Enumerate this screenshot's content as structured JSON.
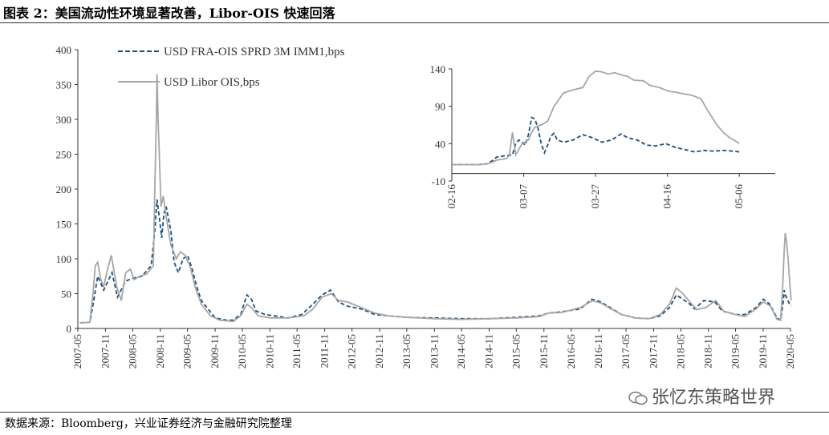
{
  "title": "图表 2：美国流动性环境显著改善，Libor-OIS 快速回落",
  "source": "数据来源：Bloomberg，兴业证券经济与金融研究院整理",
  "watermark": "张忆东策略世界",
  "colors": {
    "fra_ois": "#1f4e79",
    "libor_ois": "#a6a6a6"
  },
  "chart_data": [
    {
      "type": "line",
      "title": "",
      "xlabel": "",
      "ylabel": "",
      "ylim": [
        0,
        400
      ],
      "yticks": [
        0,
        50,
        100,
        150,
        200,
        250,
        300,
        350,
        400
      ],
      "xticks": [
        "2007-05",
        "2007-11",
        "2008-05",
        "2008-11",
        "2009-05",
        "2009-11",
        "2010-05",
        "2010-11",
        "2011-05",
        "2011-11",
        "2012-05",
        "2012-11",
        "2013-05",
        "2013-11",
        "2014-05",
        "2014-11",
        "2015-05",
        "2015-11",
        "2016-05",
        "2016-11",
        "2017-05",
        "2017-11",
        "2018-05",
        "2018-11",
        "2019-05",
        "2019-11",
        "2020-05"
      ],
      "legend": "top-left",
      "series": [
        {
          "name": "USD FRA-OIS SPRD 3M IMM1,bps",
          "style": "dashed",
          "points": [
            [
              "2007-05-15",
              8
            ],
            [
              "2007-07-20",
              9
            ],
            [
              "2007-08-15",
              40
            ],
            [
              "2007-09-10",
              75
            ],
            [
              "2007-10-20",
              55
            ],
            [
              "2007-12-15",
              80
            ],
            [
              "2008-01-20",
              45
            ],
            [
              "2008-03-15",
              68
            ],
            [
              "2008-05-01",
              72
            ],
            [
              "2008-07-01",
              75
            ],
            [
              "2008-09-01",
              90
            ],
            [
              "2008-09-25",
              140
            ],
            [
              "2008-10-10",
              185
            ],
            [
              "2008-10-25",
              160
            ],
            [
              "2008-11-10",
              130
            ],
            [
              "2008-11-25",
              165
            ],
            [
              "2008-12-10",
              175
            ],
            [
              "2009-01-10",
              140
            ],
            [
              "2009-02-01",
              95
            ],
            [
              "2009-03-01",
              80
            ],
            [
              "2009-04-01",
              100
            ],
            [
              "2009-05-01",
              105
            ],
            [
              "2009-06-01",
              85
            ],
            [
              "2009-07-01",
              60
            ],
            [
              "2009-08-01",
              40
            ],
            [
              "2009-09-15",
              28
            ],
            [
              "2009-11-01",
              15
            ],
            [
              "2010-01-15",
              12
            ],
            [
              "2010-03-01",
              12
            ],
            [
              "2010-04-20",
              20
            ],
            [
              "2010-06-01",
              48
            ],
            [
              "2010-07-01",
              42
            ],
            [
              "2010-08-01",
              25
            ],
            [
              "2010-10-01",
              20
            ],
            [
              "2010-12-01",
              18
            ],
            [
              "2011-03-01",
              15
            ],
            [
              "2011-06-01",
              20
            ],
            [
              "2011-08-15",
              35
            ],
            [
              "2011-10-15",
              48
            ],
            [
              "2011-12-10",
              55
            ],
            [
              "2012-02-01",
              38
            ],
            [
              "2012-04-01",
              32
            ],
            [
              "2012-07-01",
              28
            ],
            [
              "2012-10-01",
              20
            ],
            [
              "2013-01-01",
              18
            ],
            [
              "2013-05-01",
              16
            ],
            [
              "2013-11-01",
              15
            ],
            [
              "2014-05-01",
              14
            ],
            [
              "2014-11-01",
              14
            ],
            [
              "2015-05-01",
              16
            ],
            [
              "2015-10-01",
              18
            ],
            [
              "2015-12-01",
              22
            ],
            [
              "2016-03-01",
              24
            ],
            [
              "2016-07-01",
              28
            ],
            [
              "2016-09-15",
              42
            ],
            [
              "2016-11-15",
              38
            ],
            [
              "2017-01-15",
              30
            ],
            [
              "2017-04-01",
              20
            ],
            [
              "2017-07-01",
              15
            ],
            [
              "2017-10-01",
              14
            ],
            [
              "2017-12-15",
              18
            ],
            [
              "2018-02-15",
              30
            ],
            [
              "2018-04-01",
              48
            ],
            [
              "2018-05-15",
              42
            ],
            [
              "2018-07-01",
              35
            ],
            [
              "2018-08-01",
              28
            ],
            [
              "2018-10-01",
              40
            ],
            [
              "2018-12-15",
              38
            ],
            [
              "2019-02-01",
              25
            ],
            [
              "2019-05-01",
              20
            ],
            [
              "2019-07-01",
              20
            ],
            [
              "2019-09-15",
              30
            ],
            [
              "2019-11-01",
              42
            ],
            [
              "2019-12-15",
              35
            ],
            [
              "2020-02-01",
              15
            ],
            [
              "2020-02-25",
              12
            ],
            [
              "2020-03-15",
              40
            ],
            [
              "2020-03-20",
              55
            ],
            [
              "2020-03-27",
              48
            ],
            [
              "2020-04-10",
              42
            ],
            [
              "2020-04-25",
              35
            ],
            [
              "2020-05-06",
              32
            ]
          ]
        },
        {
          "name": "USD Libor OIS,bps",
          "style": "solid",
          "points": [
            [
              "2007-05-15",
              8
            ],
            [
              "2007-07-20",
              9
            ],
            [
              "2007-08-10",
              50
            ],
            [
              "2007-08-25",
              90
            ],
            [
              "2007-09-10",
              95
            ],
            [
              "2007-10-01",
              70
            ],
            [
              "2007-10-20",
              60
            ],
            [
              "2007-11-15",
              85
            ],
            [
              "2007-12-10",
              105
            ],
            [
              "2008-01-15",
              60
            ],
            [
              "2008-02-15",
              40
            ],
            [
              "2008-03-15",
              80
            ],
            [
              "2008-04-15",
              85
            ],
            [
              "2008-05-10",
              70
            ],
            [
              "2008-06-15",
              75
            ],
            [
              "2008-08-01",
              78
            ],
            [
              "2008-09-15",
              90
            ],
            [
              "2008-09-25",
              200
            ],
            [
              "2008-10-05",
              300
            ],
            [
              "2008-10-10",
              365
            ],
            [
              "2008-10-17",
              300
            ],
            [
              "2008-10-25",
              250
            ],
            [
              "2008-11-05",
              175
            ],
            [
              "2008-11-20",
              190
            ],
            [
              "2008-12-10",
              160
            ],
            [
              "2009-01-10",
              120
            ],
            [
              "2009-02-15",
              100
            ],
            [
              "2009-03-15",
              110
            ],
            [
              "2009-04-15",
              105
            ],
            [
              "2009-05-20",
              88
            ],
            [
              "2009-06-20",
              60
            ],
            [
              "2009-08-01",
              35
            ],
            [
              "2009-10-01",
              18
            ],
            [
              "2009-12-01",
              12
            ],
            [
              "2010-03-01",
              10
            ],
            [
              "2010-04-20",
              18
            ],
            [
              "2010-06-01",
              35
            ],
            [
              "2010-07-01",
              30
            ],
            [
              "2010-08-15",
              18
            ],
            [
              "2010-11-01",
              15
            ],
            [
              "2011-03-01",
              15
            ],
            [
              "2011-06-15",
              18
            ],
            [
              "2011-08-15",
              28
            ],
            [
              "2011-10-15",
              45
            ],
            [
              "2011-12-15",
              50
            ],
            [
              "2012-02-01",
              40
            ],
            [
              "2012-04-01",
              38
            ],
            [
              "2012-07-01",
              30
            ],
            [
              "2012-10-01",
              22
            ],
            [
              "2013-01-01",
              18
            ],
            [
              "2013-05-01",
              16
            ],
            [
              "2013-11-01",
              14
            ],
            [
              "2014-05-01",
              13
            ],
            [
              "2014-11-01",
              14
            ],
            [
              "2015-05-01",
              15
            ],
            [
              "2015-10-01",
              17
            ],
            [
              "2015-12-01",
              22
            ],
            [
              "2016-03-01",
              23
            ],
            [
              "2016-07-01",
              30
            ],
            [
              "2016-09-20",
              40
            ],
            [
              "2016-11-20",
              36
            ],
            [
              "2017-01-20",
              28
            ],
            [
              "2017-04-01",
              20
            ],
            [
              "2017-07-01",
              15
            ],
            [
              "2017-10-01",
              14
            ],
            [
              "2017-12-15",
              20
            ],
            [
              "2018-02-15",
              35
            ],
            [
              "2018-04-01",
              58
            ],
            [
              "2018-05-15",
              50
            ],
            [
              "2018-07-01",
              38
            ],
            [
              "2018-08-15",
              27
            ],
            [
              "2018-10-15",
              30
            ],
            [
              "2018-12-20",
              40
            ],
            [
              "2019-02-10",
              25
            ],
            [
              "2019-05-01",
              20
            ],
            [
              "2019-07-01",
              17
            ],
            [
              "2019-09-15",
              28
            ],
            [
              "2019-11-01",
              38
            ],
            [
              "2019-12-20",
              32
            ],
            [
              "2020-02-01",
              13
            ],
            [
              "2020-02-25",
              12
            ],
            [
              "2020-03-10",
              60
            ],
            [
              "2020-03-20",
              110
            ],
            [
              "2020-03-27",
              137
            ],
            [
              "2020-04-05",
              125
            ],
            [
              "2020-04-15",
              100
            ],
            [
              "2020-04-28",
              60
            ],
            [
              "2020-05-06",
              40
            ]
          ]
        }
      ]
    },
    {
      "type": "line",
      "title": "",
      "xlabel": "",
      "ylabel": "",
      "ylim": [
        -10,
        140
      ],
      "yticks": [
        -10,
        40,
        90,
        140
      ],
      "xticks": [
        "02-16",
        "03-07",
        "03-27",
        "04-16",
        "05-06"
      ],
      "series": [
        {
          "name": "USD FRA-OIS SPRD 3M IMM1,bps",
          "style": "dashed",
          "points": [
            [
              0,
              12
            ],
            [
              4,
              12
            ],
            [
              8,
              12
            ],
            [
              11,
              13
            ],
            [
              13,
              18
            ],
            [
              14,
              22
            ],
            [
              17,
              24
            ],
            [
              19,
              25
            ],
            [
              20,
              40
            ],
            [
              21,
              45
            ],
            [
              22,
              42
            ],
            [
              23,
              38
            ],
            [
              24,
              52
            ],
            [
              25,
              75
            ],
            [
              26,
              73
            ],
            [
              27,
              60
            ],
            [
              28,
              40
            ],
            [
              29,
              28
            ],
            [
              30,
              38
            ],
            [
              31,
              50
            ],
            [
              32,
              54
            ],
            [
              33,
              45
            ],
            [
              35,
              42
            ],
            [
              38,
              45
            ],
            [
              41,
              52
            ],
            [
              44,
              48
            ],
            [
              47,
              42
            ],
            [
              50,
              45
            ],
            [
              53,
              53
            ],
            [
              55,
              48
            ],
            [
              58,
              45
            ],
            [
              61,
              38
            ],
            [
              64,
              37
            ],
            [
              67,
              40
            ],
            [
              70,
              35
            ],
            [
              73,
              32
            ],
            [
              76,
              29
            ],
            [
              79,
              31
            ],
            [
              82,
              30
            ],
            [
              85,
              31
            ],
            [
              88,
              30
            ],
            [
              90,
              29
            ]
          ]
        },
        {
          "name": "USD Libor OIS,bps",
          "style": "solid",
          "points": [
            [
              0,
              12
            ],
            [
              5,
              12
            ],
            [
              9,
              12
            ],
            [
              12,
              14
            ],
            [
              14,
              18
            ],
            [
              17,
              20
            ],
            [
              18,
              24
            ],
            [
              19,
              55
            ],
            [
              20,
              25
            ],
            [
              22,
              40
            ],
            [
              24,
              45
            ],
            [
              25,
              55
            ],
            [
              26,
              62
            ],
            [
              28,
              65
            ],
            [
              30,
              70
            ],
            [
              32,
              90
            ],
            [
              35,
              108
            ],
            [
              38,
              112
            ],
            [
              41,
              115
            ],
            [
              43,
              130
            ],
            [
              45,
              137
            ],
            [
              47,
              136
            ],
            [
              49,
              133
            ],
            [
              51,
              135
            ],
            [
              53,
              132
            ],
            [
              55,
              130
            ],
            [
              57,
              125
            ],
            [
              60,
              124
            ],
            [
              62,
              118
            ],
            [
              65,
              115
            ],
            [
              68,
              110
            ],
            [
              70,
              109
            ],
            [
              72,
              107
            ],
            [
              75,
              105
            ],
            [
              78,
              100
            ],
            [
              80,
              85
            ],
            [
              83,
              65
            ],
            [
              85,
              55
            ],
            [
              87,
              48
            ],
            [
              89,
              43
            ],
            [
              90,
              40
            ]
          ]
        }
      ]
    }
  ]
}
